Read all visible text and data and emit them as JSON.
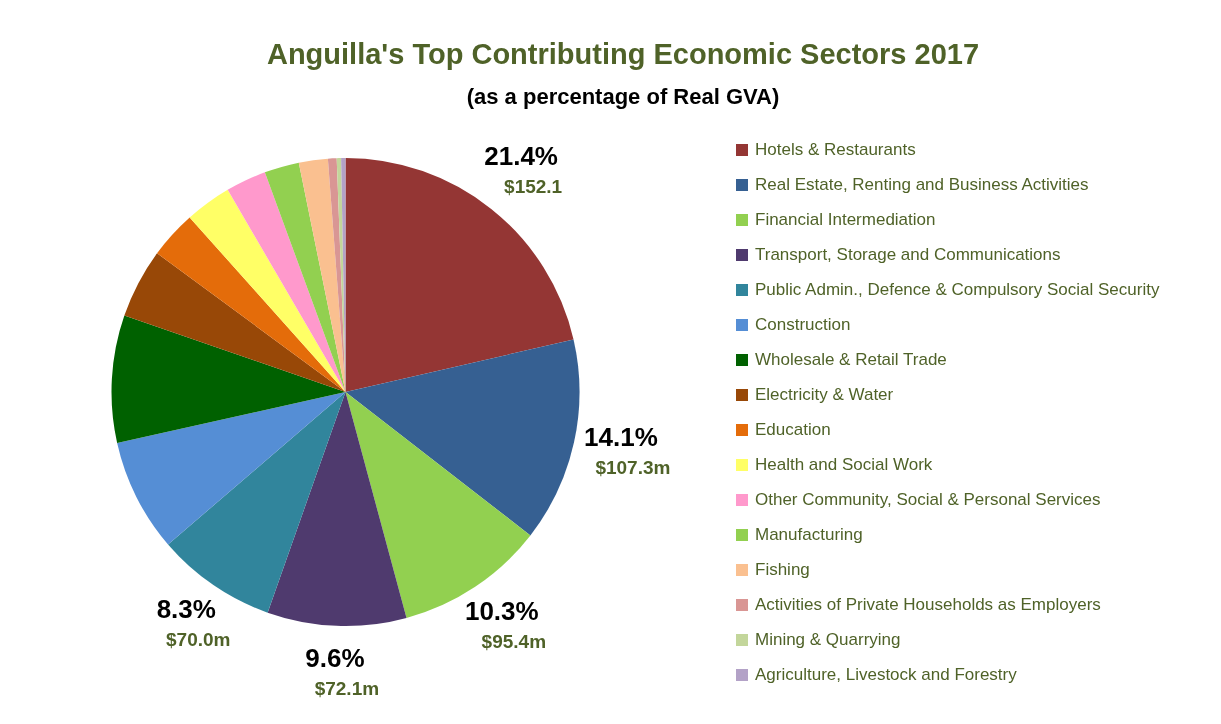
{
  "chart_data": {
    "type": "pie",
    "title": "Anguilla's Top Contributing Economic Sectors 2017",
    "subtitle": "(as a percentage of Real GVA)",
    "categories": [
      "Hotels & Restaurants",
      "Real Estate, Renting and Business Activities",
      "Financial Intermediation",
      "Transport, Storage and Communications",
      "Public Admin., Defence & Compulsory Social Security",
      "Construction",
      "Wholesale & Retail Trade",
      "Electricity & Water",
      "Education",
      "Health and Social Work",
      "Other Community, Social & Personal Services",
      "Manufacturing",
      "Fishing",
      "Activities of Private Households as Employers",
      "Mining & Quarrying",
      "Agriculture, Livestock and Forestry"
    ],
    "values": [
      21.4,
      14.1,
      10.3,
      9.6,
      8.3,
      7.8,
      8.8,
      4.8,
      3.3,
      3.2,
      2.8,
      2.4,
      2.0,
      0.6,
      0.3,
      0.3
    ],
    "colors": [
      "#943634",
      "#366092",
      "#92d050",
      "#4f3a6e",
      "#31859c",
      "#558ed5",
      "#006100",
      "#984807",
      "#e46c0a",
      "#ffff66",
      "#ff99cc",
      "#92d050",
      "#fac090",
      "#d99694",
      "#c3d69b",
      "#b3a2c7"
    ],
    "value_labels": [
      "21.4%\n$152.1",
      "14.1%\n$107.3m",
      "10.3%\n$95.4m",
      "9.6%\n$72.1m",
      "8.3%\n$70.0m",
      null,
      null,
      null,
      null,
      null,
      null,
      null,
      null,
      null,
      null,
      null
    ],
    "legend": "right"
  }
}
